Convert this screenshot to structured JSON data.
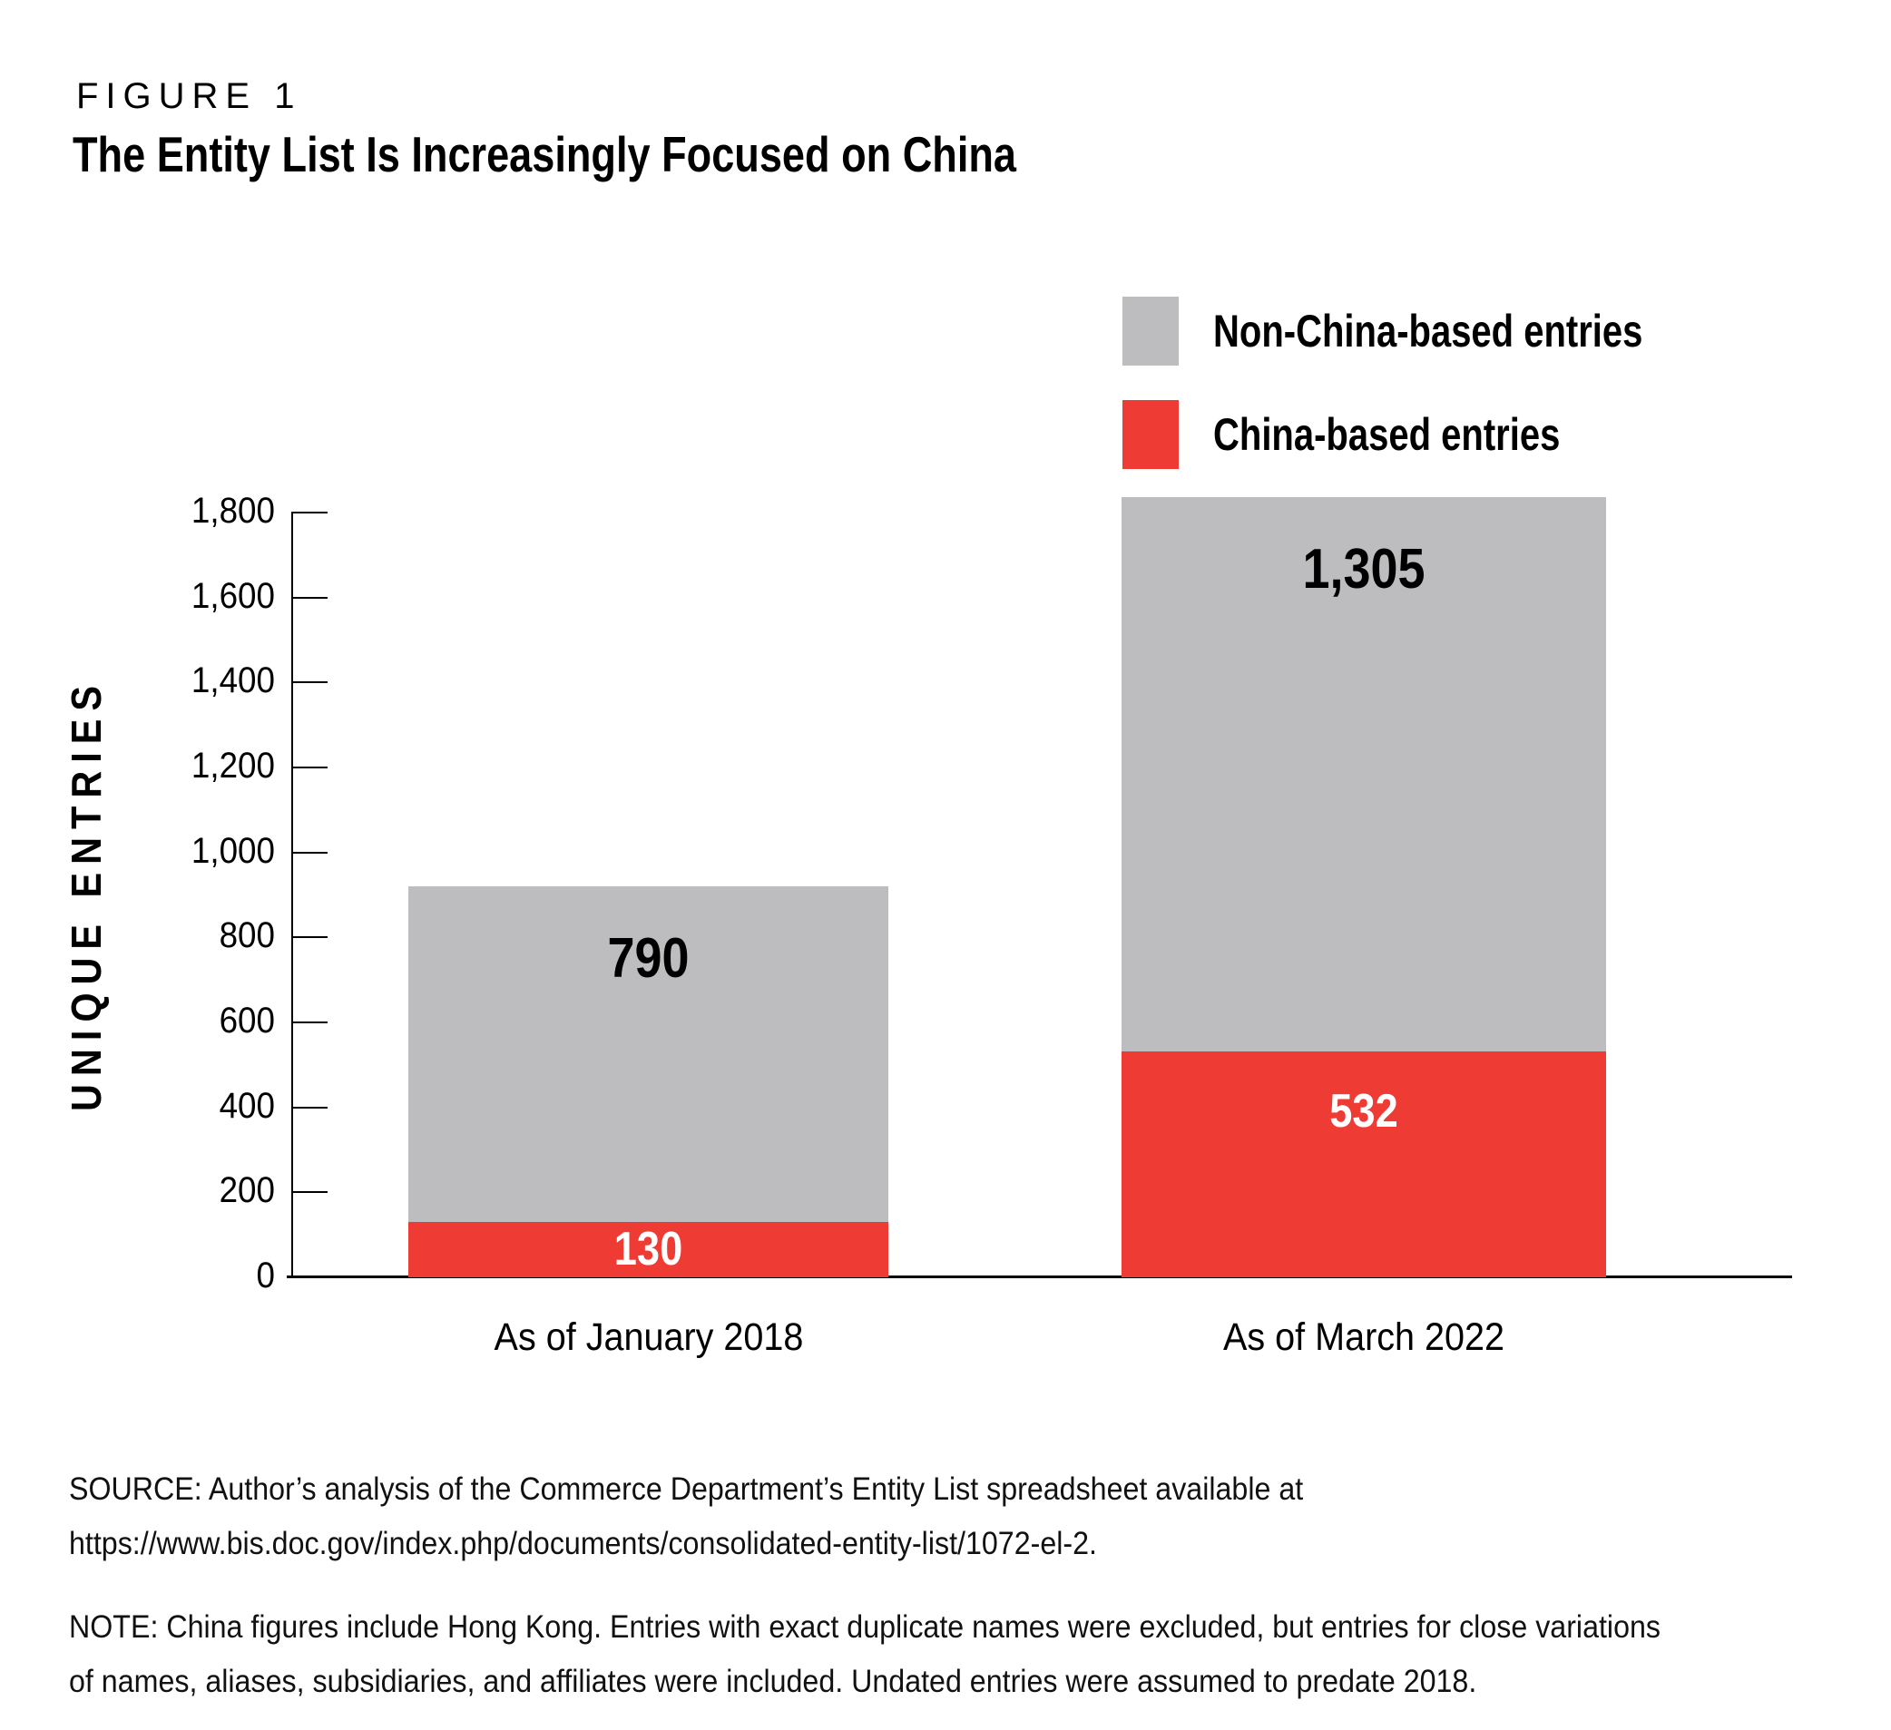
{
  "header": {
    "kicker": "FIGURE 1",
    "title": "The Entity List Is Increasingly Focused on China"
  },
  "legend": {
    "items": [
      {
        "label": "Non-China-based entries",
        "color": "#BDBDBF",
        "swatch": "gray-square"
      },
      {
        "label": "China-based entries",
        "color": "#EE3B33",
        "swatch": "red-square"
      }
    ]
  },
  "chart_data": {
    "type": "bar",
    "stacked": true,
    "categories": [
      "As of January 2018",
      "As of March 2022"
    ],
    "series": [
      {
        "name": "Non-China-based entries",
        "color": "#BDBDBF",
        "values": [
          790,
          1305
        ],
        "value_labels": [
          "790",
          "1,305"
        ],
        "label_color": "#000000"
      },
      {
        "name": "China-based entries",
        "color": "#EE3B33",
        "values": [
          130,
          532
        ],
        "value_labels": [
          "130",
          "532"
        ],
        "label_color": "#FFFFFF"
      }
    ],
    "totals": [
      920,
      1837
    ],
    "title": "The Entity List Is Increasingly Focused on China",
    "xlabel": "",
    "ylabel": "UNIQUE ENTRIES",
    "ylim": [
      0,
      1800
    ],
    "ytick_step": 200,
    "ytick_labels": [
      "0",
      "200",
      "400",
      "600",
      "800",
      "1,000",
      "1,200",
      "1,400",
      "1,600",
      "1,800"
    ],
    "grid": false,
    "legend_position": "top-right"
  },
  "source": {
    "lines": [
      "SOURCE: Author’s analysis of the Commerce Department’s Entity List spreadsheet available at",
      "https://www.bis.doc.gov/index.php/documents/consolidated-entity-list/1072-el-2."
    ]
  },
  "note": {
    "lines": [
      "NOTE: China figures include Hong Kong. Entries with exact duplicate names were excluded, but entries for close variations",
      "of names, aliases, subsidiaries, and affiliates were included. Undated entries were assumed to predate 2018."
    ]
  }
}
